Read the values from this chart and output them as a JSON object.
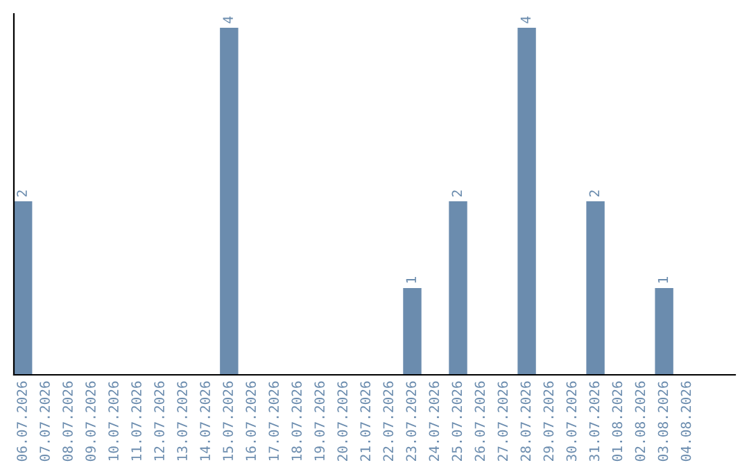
{
  "chart_data": {
    "type": "bar",
    "categories": [
      "06.07.2026",
      "07.07.2026",
      "08.07.2026",
      "09.07.2026",
      "10.07.2026",
      "11.07.2026",
      "12.07.2026",
      "13.07.2026",
      "14.07.2026",
      "15.07.2026",
      "16.07.2026",
      "17.07.2026",
      "18.07.2026",
      "19.07.2026",
      "20.07.2026",
      "21.07.2026",
      "22.07.2026",
      "23.07.2026",
      "24.07.2026",
      "25.07.2026",
      "26.07.2026",
      "27.07.2026",
      "28.07.2026",
      "29.07.2026",
      "30.07.2026",
      "31.07.2026",
      "01.08.2026",
      "02.08.2026",
      "03.08.2026",
      "04.08.2026"
    ],
    "values": [
      2,
      0,
      0,
      0,
      0,
      0,
      0,
      0,
      0,
      4,
      0,
      0,
      0,
      0,
      0,
      0,
      0,
      1,
      0,
      2,
      0,
      0,
      4,
      0,
      0,
      2,
      0,
      0,
      1,
      0
    ],
    "value_labels": [
      "2",
      null,
      null,
      null,
      null,
      null,
      null,
      null,
      null,
      "4",
      null,
      null,
      null,
      null,
      null,
      null,
      null,
      "1",
      null,
      "2",
      null,
      null,
      "4",
      null,
      null,
      "2",
      null,
      null,
      "1",
      null
    ],
    "color": "#6b8cae",
    "tick_labels": "x",
    "grid": false,
    "legend": false
  }
}
